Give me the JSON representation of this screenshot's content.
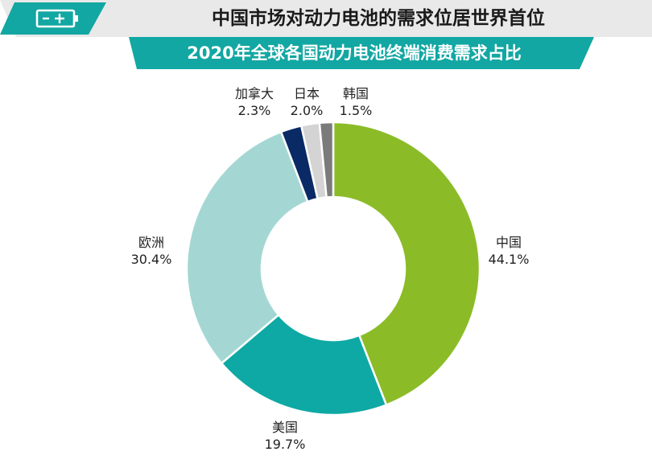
{
  "header": {
    "title": "中国市场对动力电池的需求位居世界首位",
    "icon": "battery-icon",
    "accent_color": "#12a7a3"
  },
  "chart_data": {
    "type": "pie",
    "style": "donut",
    "title": "2020年全球各国动力电池终端消费需求占比",
    "categories": [
      "中国",
      "美国",
      "欧洲",
      "加拿大",
      "日本",
      "韩国"
    ],
    "values": [
      44.1,
      19.7,
      30.4,
      2.3,
      2.0,
      1.5
    ],
    "value_labels": [
      "44.1%",
      "19.7%",
      "30.4%",
      "2.3%",
      "2.0%",
      "1.5%"
    ],
    "colors": [
      "#8bbc28",
      "#0ea9a4",
      "#a4d7d3",
      "#0a2a66",
      "#d4d4d4",
      "#7b7b7b"
    ],
    "start": "top",
    "direction": "clockwise",
    "legend": "none"
  }
}
